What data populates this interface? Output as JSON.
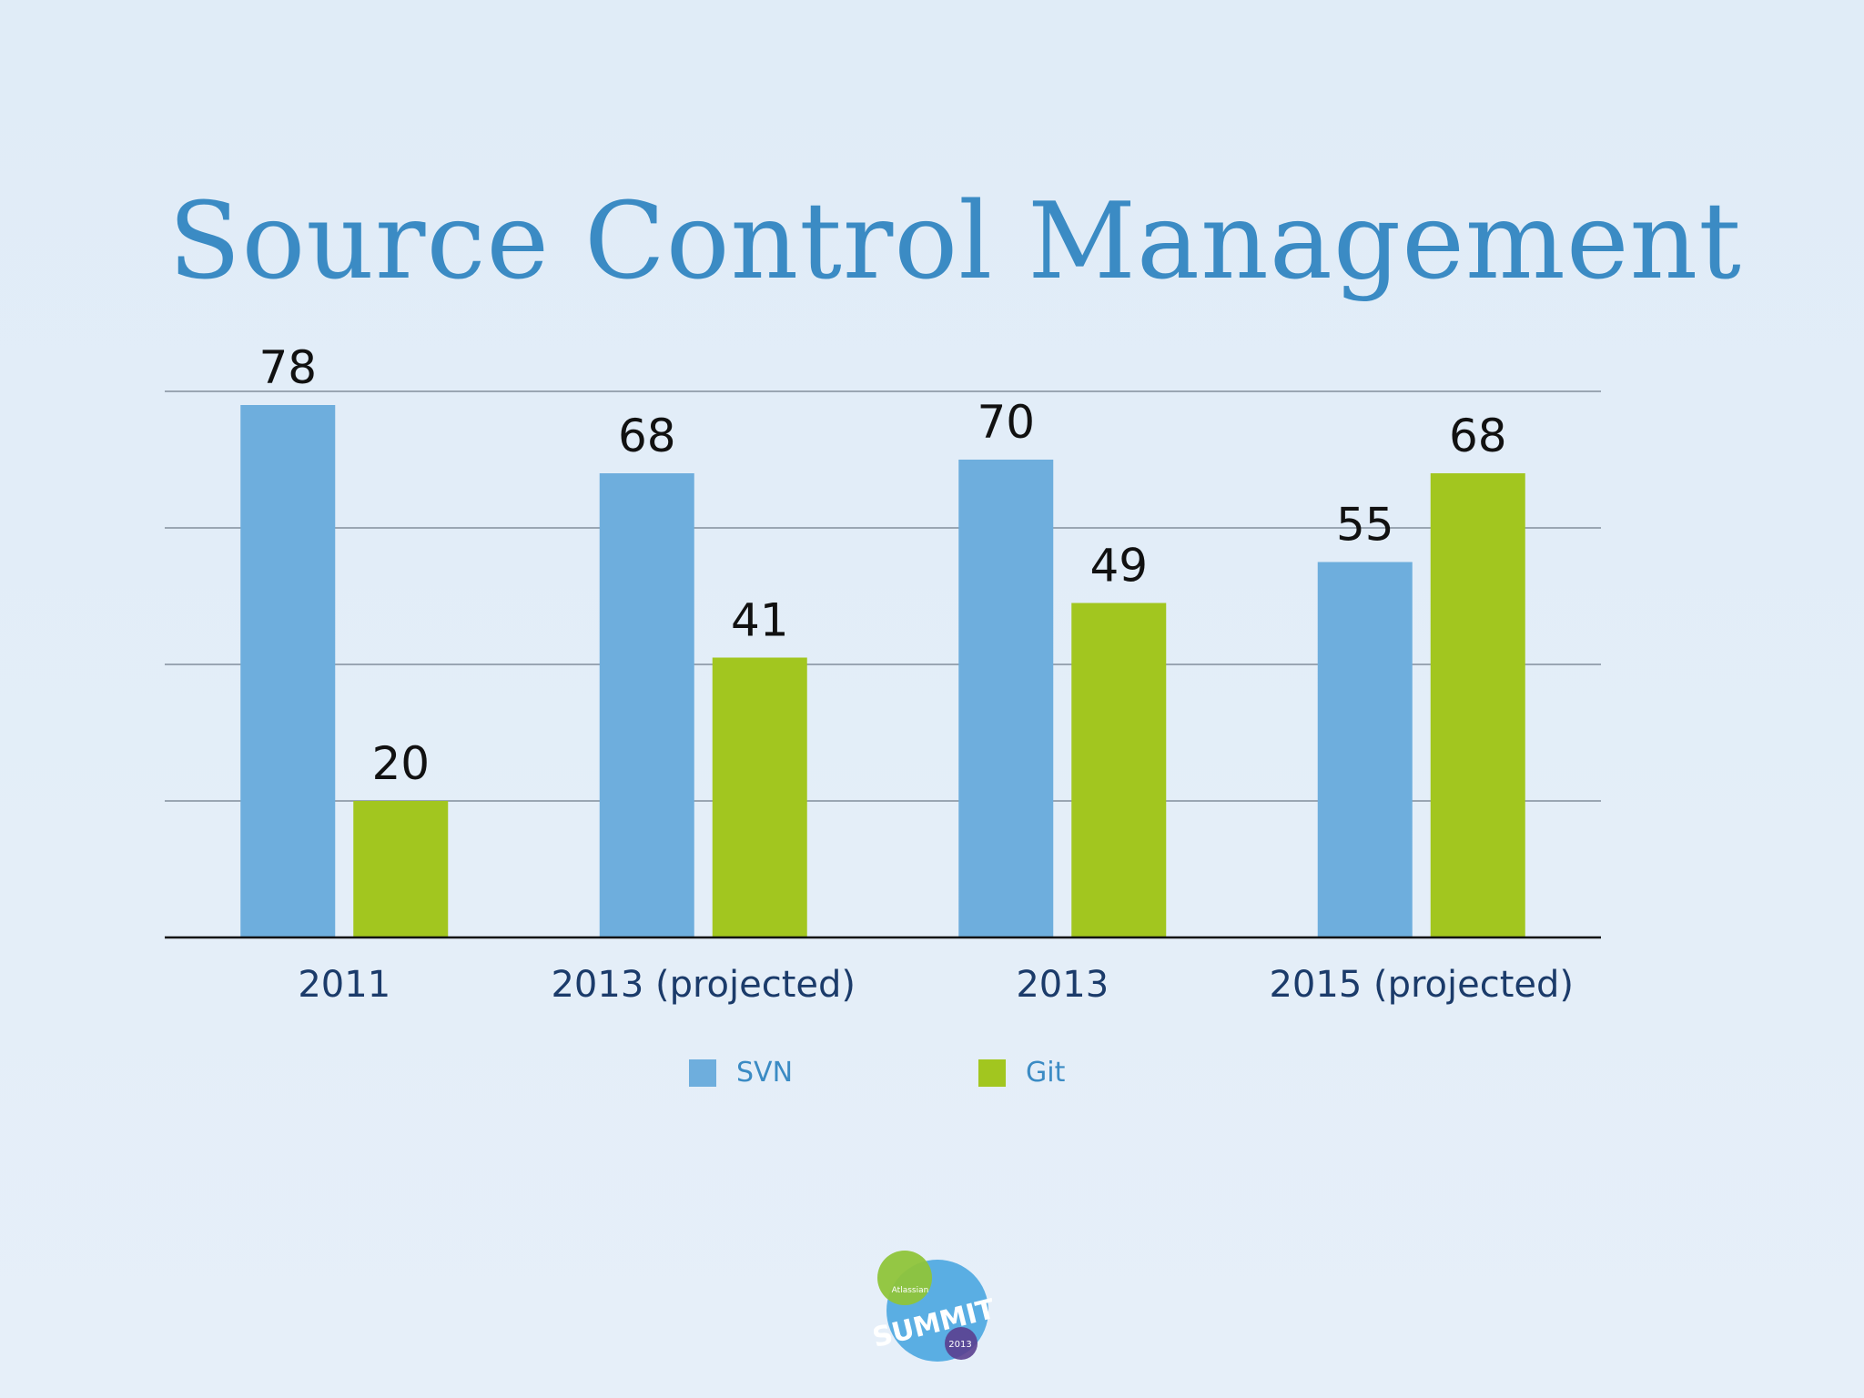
{
  "slide": {
    "title": "Source Control Management",
    "logo_text": [
      "Atlassian",
      "SUMMIT",
      "2013"
    ]
  },
  "colors": {
    "svn": "#6eaedd",
    "git": "#a2c61f",
    "grid": "#9aa6b3",
    "axis": "#111111"
  },
  "chart_data": {
    "type": "bar",
    "title": "Source Control Management",
    "categories": [
      "2011",
      "2013 (projected)",
      "2013",
      "2015 (projected)"
    ],
    "series": [
      {
        "name": "SVN",
        "color": "#6eaedd",
        "values": [
          78,
          68,
          70,
          55
        ]
      },
      {
        "name": "Git",
        "color": "#a2c61f",
        "values": [
          20,
          41,
          49,
          68
        ]
      }
    ],
    "ylim": [
      0,
      80
    ],
    "gridlines": true,
    "legend": "bottom-center",
    "data_labels": true
  }
}
